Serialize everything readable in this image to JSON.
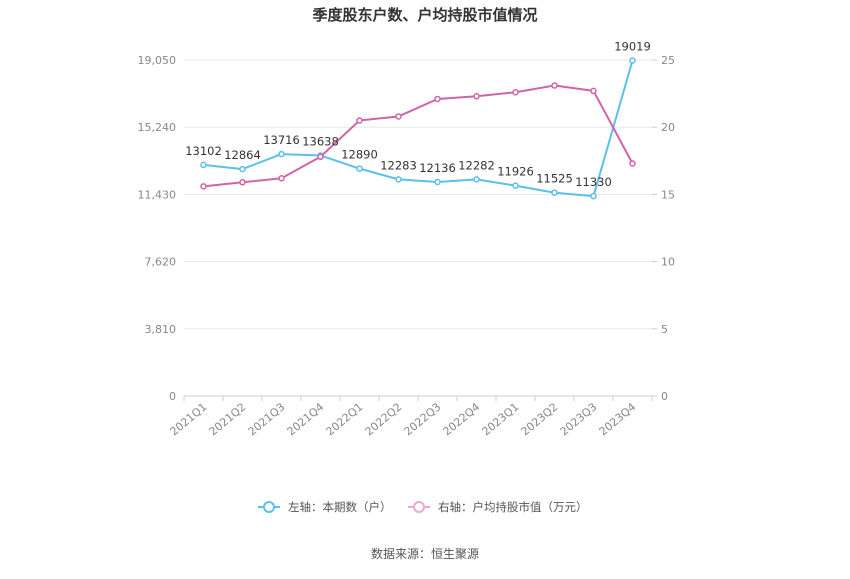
{
  "chart_data": {
    "type": "line",
    "title": "季度股东户数、户均持股市值情况",
    "source": "数据来源：恒生聚源",
    "categories": [
      "2021Q1",
      "2021Q2",
      "2021Q3",
      "2021Q4",
      "2022Q1",
      "2022Q2",
      "2022Q3",
      "2022Q4",
      "2023Q1",
      "2023Q2",
      "2023Q3",
      "2023Q4"
    ],
    "left_axis": {
      "ticks": [
        "0",
        "3,810",
        "7,620",
        "11,430",
        "15,240",
        "19,050"
      ],
      "ylim": [
        0,
        19050
      ]
    },
    "right_axis": {
      "ticks": [
        "0",
        "5",
        "10",
        "15",
        "20",
        "25"
      ],
      "ylim": [
        0,
        25
      ]
    },
    "series": [
      {
        "name": "左轴：本期数（户）",
        "axis": "left",
        "color": "#5bc0eb",
        "values": [
          13102,
          12864,
          13716,
          13638,
          12890,
          12283,
          12136,
          12282,
          11926,
          11525,
          11330,
          19019
        ],
        "labels": [
          "13102",
          "12864",
          "13716",
          "13638",
          "12890",
          "12283",
          "12136",
          "12282",
          "11926",
          "11525",
          "11330",
          "19019"
        ]
      },
      {
        "name": "右轴：户均持股市值（万元）",
        "axis": "right",
        "color": "#d064a8",
        "values": [
          15.6,
          15.9,
          16.2,
          17.8,
          20.5,
          20.8,
          22.1,
          22.3,
          22.6,
          23.1,
          22.7,
          17.3
        ]
      }
    ],
    "grid": true,
    "legend_position": "bottom"
  }
}
